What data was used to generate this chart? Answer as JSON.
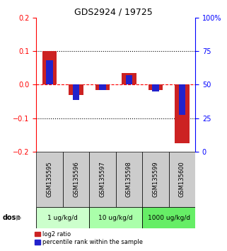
{
  "title": "GDS2924 / 19725",
  "samples": [
    "GSM135595",
    "GSM135596",
    "GSM135597",
    "GSM135598",
    "GSM135599",
    "GSM135600"
  ],
  "log2_ratio": [
    0.1,
    -0.03,
    -0.015,
    0.035,
    -0.015,
    -0.175
  ],
  "percentile_rank": [
    0.073,
    -0.045,
    -0.015,
    0.028,
    -0.02,
    -0.09
  ],
  "ylim_left": [
    -0.2,
    0.2
  ],
  "ylim_right": [
    0,
    100
  ],
  "yticks_left": [
    -0.2,
    -0.1,
    0.0,
    0.1,
    0.2
  ],
  "yticks_right": [
    0,
    25,
    50,
    75,
    100
  ],
  "ytick_labels_right": [
    "0",
    "25",
    "50",
    "75",
    "100%"
  ],
  "red_color": "#cc2222",
  "blue_color": "#2222cc",
  "dose_groups": [
    {
      "label": "1 ug/kg/d",
      "color": "#ccffcc",
      "start": 0,
      "end": 1
    },
    {
      "label": "10 ug/kg/d",
      "color": "#aaffaa",
      "start": 2,
      "end": 3
    },
    {
      "label": "1000 ug/kg/d",
      "color": "#66ee66",
      "start": 4,
      "end": 5
    }
  ],
  "dose_label": "dose",
  "legend_red": "log2 ratio",
  "legend_blue": "percentile rank within the sample",
  "bg_color": "#cccccc",
  "sample_fontsize": 6,
  "title_fontsize": 9
}
